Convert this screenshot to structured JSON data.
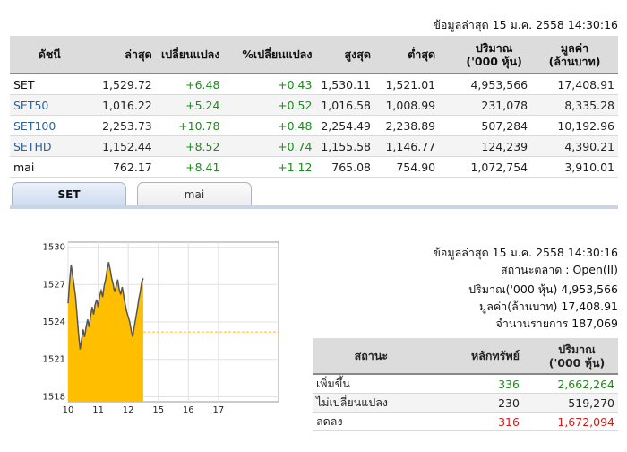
{
  "top_timestamp": "ข้อมูลล่าสุด 15 ม.ค. 2558 14:30:16",
  "index_table": {
    "headers": {
      "name": "ดัชนี",
      "last": "ล่าสุด",
      "change": "เปลี่ยนแปลง",
      "pct_change": "%เปลี่ยนแปลง",
      "high": "สูงสุด",
      "low": "ต่ำสุด",
      "volume_1": "ปริมาณ",
      "volume_2": "('000 หุ้น)",
      "value_1": "มูลค่า",
      "value_2": "(ล้านบาท)"
    },
    "rows": [
      {
        "name": "SET",
        "last": "1,529.72",
        "change": "+6.48",
        "pct": "+0.43",
        "high": "1,530.11",
        "low": "1,521.01",
        "volume": "4,953,566",
        "value": "17,408.91"
      },
      {
        "name": "SET50",
        "last": "1,016.22",
        "change": "+5.24",
        "pct": "+0.52",
        "high": "1,016.58",
        "low": "1,008.99",
        "volume": "231,078",
        "value": "8,335.28"
      },
      {
        "name": "SET100",
        "last": "2,253.73",
        "change": "+10.78",
        "pct": "+0.48",
        "high": "2,254.49",
        "low": "2,238.89",
        "volume": "507,284",
        "value": "10,192.96"
      },
      {
        "name": "SETHD",
        "last": "1,152.44",
        "change": "+8.52",
        "pct": "+0.74",
        "high": "1,155.58",
        "low": "1,146.77",
        "volume": "124,239",
        "value": "4,390.21"
      },
      {
        "name": "mai",
        "last": "762.17",
        "change": "+8.41",
        "pct": "+1.12",
        "high": "765.08",
        "low": "754.90",
        "volume": "1,072,754",
        "value": "3,910.01"
      }
    ]
  },
  "tabs": {
    "set": "SET",
    "mai": "mai"
  },
  "market_info": {
    "timestamp": "ข้อมูลล่าสุด 15 ม.ค. 2558 14:30:16",
    "status": "สถานะตลาด : Open(II)",
    "volume": "ปริมาณ('000 หุ้น) 4,953,566",
    "value": "มูลค่า(ล้านบาท) 17,408.91",
    "transactions": "จำนวนรายการ 187,069"
  },
  "status_table": {
    "headers": {
      "status": "สถานะ",
      "securities": "หลักทรัพย์",
      "volume_1": "ปริมาณ",
      "volume_2": "('000 หุ้น)"
    },
    "rows": [
      {
        "label": "เพิ่มขึ้น",
        "count": "336",
        "volume": "2,662,264"
      },
      {
        "label": "ไม่เปลี่ยนแปลง",
        "count": "230",
        "volume": "519,270"
      },
      {
        "label": "ลดลง",
        "count": "316",
        "volume": "1,672,094"
      }
    ]
  },
  "colors": {
    "up": "#1f8a1f",
    "down": "#d61a1a",
    "area_fill": "#ffbf00",
    "area_line": "#555555",
    "prev_close_line": "#ffbf00"
  },
  "chart_data": {
    "type": "area",
    "x_ticks": [
      "10",
      "11",
      "12",
      "15",
      "16",
      "17"
    ],
    "y_ticks": [
      1518,
      1521,
      1524,
      1527,
      1530
    ],
    "ylim": [
      1517.6,
      1530.4
    ],
    "xlim": [
      10.0,
      17.0
    ],
    "prev_close": 1523.2,
    "x": [
      10.0,
      10.05,
      10.1,
      10.15,
      10.2,
      10.25,
      10.3,
      10.35,
      10.4,
      10.45,
      10.5,
      10.55,
      10.6,
      10.65,
      10.7,
      10.75,
      10.8,
      10.85,
      10.9,
      10.95,
      11.0,
      11.05,
      11.1,
      11.15,
      11.2,
      11.25,
      11.3,
      11.35,
      11.4,
      11.45,
      11.5,
      11.55,
      11.6,
      11.65,
      11.7,
      11.75,
      11.8,
      11.85,
      11.9,
      11.95,
      12.0,
      12.05,
      12.1,
      12.15,
      12.2,
      12.25,
      12.3,
      12.35,
      12.4,
      12.45,
      12.5
    ],
    "values": [
      1525.5,
      1527.2,
      1528.6,
      1527.8,
      1526.9,
      1526.0,
      1524.5,
      1523.0,
      1521.8,
      1522.6,
      1523.4,
      1522.8,
      1523.6,
      1524.2,
      1523.6,
      1524.5,
      1525.2,
      1524.6,
      1525.4,
      1525.8,
      1525.2,
      1526.1,
      1526.5,
      1526.0,
      1526.9,
      1527.4,
      1528.2,
      1528.8,
      1528.2,
      1527.5,
      1527.0,
      1526.4,
      1526.9,
      1527.4,
      1526.6,
      1526.2,
      1526.8,
      1526.1,
      1525.4,
      1524.8,
      1524.4,
      1524.0,
      1523.3,
      1522.8,
      1523.6,
      1524.3,
      1525.0,
      1525.8,
      1526.4,
      1527.2,
      1527.5
    ]
  }
}
